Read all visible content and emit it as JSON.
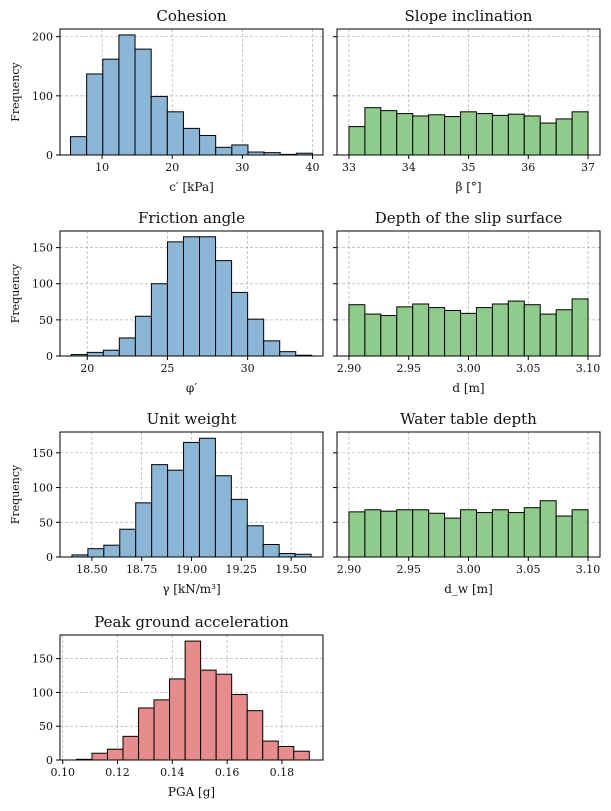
{
  "chart_data": [
    {
      "type": "bar",
      "title": "Cohesion",
      "xlabel": "c′  [kPa]",
      "ylabel": "Frequency",
      "color": "#8cb6d6",
      "bin_edges": [
        5.5,
        7.8,
        10.1,
        12.4,
        14.7,
        17.0,
        19.3,
        21.6,
        23.9,
        26.2,
        28.5,
        30.8,
        33.1,
        35.4,
        37.7,
        40.0
      ],
      "values": [
        31,
        137,
        162,
        203,
        179,
        99,
        73,
        45,
        33,
        13,
        17,
        5,
        4,
        1,
        3
      ],
      "xlim": [
        4.0,
        41.5
      ],
      "ylim": [
        0,
        213
      ],
      "xticks": [
        10,
        20,
        30,
        40
      ],
      "xtick_labels": [
        "10",
        "20",
        "30",
        "40"
      ],
      "yticks": [
        0,
        100,
        200
      ],
      "ytick_labels": [
        "0",
        "100",
        "200"
      ]
    },
    {
      "type": "bar",
      "title": "Slope inclination",
      "xlabel": "β  [°]",
      "ylabel": "",
      "color": "#8fcc8c",
      "bin_edges": [
        33.0,
        33.267,
        33.533,
        33.8,
        34.067,
        34.333,
        34.6,
        34.867,
        35.133,
        35.4,
        35.667,
        35.933,
        36.2,
        36.467,
        36.733,
        37.0
      ],
      "values": [
        48,
        80,
        75,
        70,
        66,
        68,
        65,
        73,
        70,
        67,
        69,
        66,
        54,
        61,
        73
      ],
      "xlim": [
        32.8,
        37.2
      ],
      "ylim": [
        0,
        213
      ],
      "xticks": [
        33,
        34,
        35,
        36,
        37
      ],
      "xtick_labels": [
        "33",
        "34",
        "35",
        "36",
        "37"
      ],
      "yticks": [
        0,
        100,
        200
      ],
      "ytick_labels": [
        "",
        "",
        ""
      ]
    },
    {
      "type": "bar",
      "title": "Friction angle",
      "xlabel": "φ′",
      "ylabel": "Frequency",
      "color": "#8cb6d6",
      "bin_edges": [
        19.0,
        20.0,
        21.0,
        22.0,
        23.0,
        24.0,
        25.0,
        26.0,
        27.0,
        28.0,
        29.0,
        30.0,
        31.0,
        32.0,
        33.0,
        34.0
      ],
      "values": [
        2,
        5,
        8,
        25,
        55,
        100,
        158,
        165,
        165,
        132,
        88,
        51,
        21,
        6,
        1
      ],
      "xlim": [
        18.3,
        34.7
      ],
      "ylim": [
        0,
        173
      ],
      "xticks": [
        20,
        25,
        30
      ],
      "xtick_labels": [
        "20",
        "25",
        "30"
      ],
      "yticks": [
        0,
        50,
        100,
        150
      ],
      "ytick_labels": [
        "0",
        "50",
        "100",
        "150"
      ]
    },
    {
      "type": "bar",
      "title": "Depth of the slip surface",
      "xlabel": "d  [m]",
      "ylabel": "",
      "color": "#8fcc8c",
      "bin_edges": [
        2.9,
        2.91333,
        2.92667,
        2.94,
        2.95333,
        2.96667,
        2.98,
        2.99333,
        3.00667,
        3.02,
        3.03333,
        3.04667,
        3.06,
        3.07333,
        3.08667,
        3.1
      ],
      "values": [
        71,
        58,
        56,
        68,
        72,
        67,
        63,
        59,
        67,
        72,
        76,
        71,
        58,
        64,
        79
      ],
      "xlim": [
        2.89,
        3.11
      ],
      "ylim": [
        0,
        173
      ],
      "xticks": [
        2.9,
        2.95,
        3.0,
        3.05,
        3.1
      ],
      "xtick_labels": [
        "2.90",
        "2.95",
        "3.00",
        "3.05",
        "3.10"
      ],
      "yticks": [
        0,
        50,
        100,
        150
      ],
      "ytick_labels": [
        "",
        "",
        "",
        ""
      ]
    },
    {
      "type": "bar",
      "title": "Unit weight",
      "xlabel": "γ  [kN/m³]",
      "ylabel": "Frequency",
      "color": "#8cb6d6",
      "bin_edges": [
        18.4,
        18.48,
        18.56,
        18.64,
        18.72,
        18.8,
        18.88,
        18.96,
        19.04,
        19.12,
        19.2,
        19.28,
        19.36,
        19.44,
        19.52,
        19.6
      ],
      "values": [
        3,
        12,
        17,
        40,
        78,
        133,
        125,
        165,
        171,
        117,
        83,
        45,
        18,
        5,
        4
      ],
      "xlim": [
        18.34,
        19.66
      ],
      "ylim": [
        0,
        180
      ],
      "xticks": [
        18.5,
        18.75,
        19.0,
        19.25,
        19.5
      ],
      "xtick_labels": [
        "18.50",
        "18.75",
        "19.00",
        "19.25",
        "19.50"
      ],
      "yticks": [
        0,
        50,
        100,
        150
      ],
      "ytick_labels": [
        "0",
        "50",
        "100",
        "150"
      ]
    },
    {
      "type": "bar",
      "title": "Water table depth",
      "xlabel": "d_w  [m]",
      "ylabel": "",
      "color": "#8fcc8c",
      "bin_edges": [
        2.9,
        2.91333,
        2.92667,
        2.94,
        2.95333,
        2.96667,
        2.98,
        2.99333,
        3.00667,
        3.02,
        3.03333,
        3.04667,
        3.06,
        3.07333,
        3.08667,
        3.1
      ],
      "values": [
        65,
        68,
        66,
        68,
        68,
        63,
        56,
        68,
        64,
        68,
        64,
        71,
        81,
        59,
        68
      ],
      "xlim": [
        2.89,
        3.11
      ],
      "ylim": [
        0,
        180
      ],
      "xticks": [
        2.9,
        2.95,
        3.0,
        3.05,
        3.1
      ],
      "xtick_labels": [
        "2.90",
        "2.95",
        "3.00",
        "3.05",
        "3.10"
      ],
      "yticks": [
        0,
        50,
        100,
        150
      ],
      "ytick_labels": [
        "",
        "",
        "",
        ""
      ]
    },
    {
      "type": "bar",
      "title": "Peak ground acceleration",
      "xlabel": "PGA  [g]",
      "ylabel": "",
      "color": "#e68c8c",
      "bin_edges": [
        0.105,
        0.11067,
        0.11633,
        0.122,
        0.12767,
        0.13333,
        0.139,
        0.14467,
        0.15033,
        0.156,
        0.16167,
        0.16733,
        0.173,
        0.17867,
        0.18433,
        0.19
      ],
      "values": [
        1,
        10,
        16,
        35,
        77,
        89,
        120,
        176,
        133,
        127,
        97,
        73,
        28,
        20,
        13
      ],
      "xlim": [
        0.099,
        0.195
      ],
      "ylim": [
        0,
        185
      ],
      "xticks": [
        0.1,
        0.12,
        0.14,
        0.16,
        0.18
      ],
      "xtick_labels": [
        "0.10",
        "0.12",
        "0.14",
        "0.16",
        "0.18"
      ],
      "yticks": [
        0,
        50,
        100,
        150
      ],
      "ytick_labels": [
        "0",
        "50",
        "100",
        "150"
      ]
    }
  ]
}
